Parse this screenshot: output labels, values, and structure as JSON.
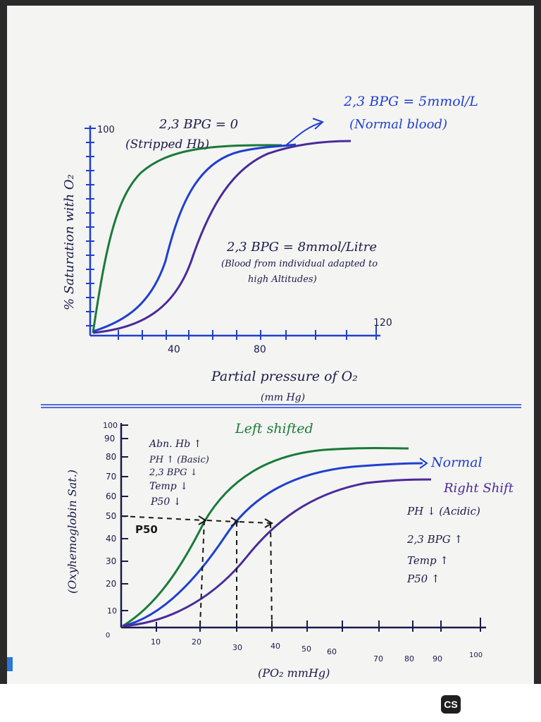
{
  "top_graph": {
    "y_label": "% Saturation with O₂",
    "y_tick_100": "100",
    "x_ticks": [
      "40",
      "80",
      "120"
    ],
    "x_label": "Partial pressure of O₂",
    "x_unit": "(mm Hg)",
    "curve_stripped": {
      "label": "2,3 BPG = 0",
      "sublabel": "(Stripped Hb)",
      "color": "#1a7a3a"
    },
    "curve_normal": {
      "label": "2,3 BPG = 5mmol/L",
      "sublabel": "(Normal blood)",
      "color": "#1f3fd0"
    },
    "curve_altitude": {
      "label": "2,3 BPG = 8mmol/Litre",
      "sublabel": "(Blood from individual adapted to",
      "sublabel2": "high Altitudes)",
      "color": "#4a2a9a"
    }
  },
  "bottom_graph": {
    "y_label": "(Oxyhemoglobin Sat.)",
    "y_ticks": [
      "100",
      "90",
      "80",
      "70",
      "60",
      "50",
      "40",
      "30",
      "20",
      "10",
      "0"
    ],
    "x_ticks": [
      "10",
      "20",
      "30",
      "40",
      "50",
      "60",
      "70",
      "80",
      "90",
      "100"
    ],
    "x_label": "(PO₂ mmHg)",
    "p50_label": "P50",
    "left_shift": {
      "title": "Left shifted",
      "items": [
        "Abn. Hb ↑",
        "PH ↑ (Basic)",
        "2,3 BPG ↓",
        "Temp ↓",
        "P50 ↓"
      ],
      "color": "#1a7a3a"
    },
    "normal_label": "Normal",
    "right_shift": {
      "title": "Right Shift",
      "items": [
        "PH ↓ (Acidic)",
        "2,3 BPG ↑",
        "Temp ↑",
        "P50 ↑"
      ],
      "color": "#4a2a9a"
    }
  },
  "colors": {
    "ink_blue": "#1f3fd0",
    "ink_dark": "#1a1a4a",
    "green": "#1a7a3a",
    "violet": "#4a2a9a"
  },
  "watermark": {
    "logo_text": "CS"
  }
}
